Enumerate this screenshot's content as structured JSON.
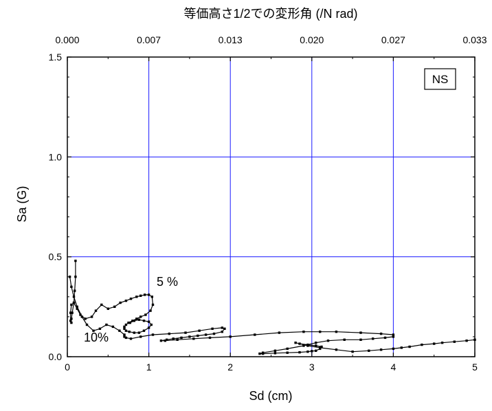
{
  "chart_data": {
    "type": "line",
    "title": "",
    "xlabel": "Sd (cm)",
    "ylabel": "Sa (G)",
    "top_xlabel": "等価高さ1/2での変形角 (/N rad)",
    "xlim": [
      0,
      5
    ],
    "ylim": [
      0,
      1.5
    ],
    "x_ticks": [
      "0",
      "1",
      "2",
      "3",
      "4",
      "5"
    ],
    "y_ticks": [
      "0.0",
      "0.5",
      "1.0",
      "1.5"
    ],
    "top_x_ticks": [
      "0.000",
      "0.007",
      "0.013",
      "0.020",
      "0.027",
      "0.033"
    ],
    "grid": true,
    "grid_color": "#1a1aff",
    "badge": "NS",
    "annotations": [
      {
        "text": "5 %",
        "x": 1.05,
        "y": 0.38
      },
      {
        "text": "10%",
        "x": 0.21,
        "y": 0.095
      }
    ],
    "series": [
      {
        "x": [
          0.1,
          0.1,
          0.09,
          0.08,
          0.06,
          0.05,
          0.05,
          0.04,
          0.04,
          0.05,
          0.08,
          0.12,
          0.16,
          0.22,
          0.3,
          0.35,
          0.42,
          0.5,
          0.58,
          0.65,
          0.72,
          0.78,
          0.85,
          0.9,
          0.95,
          1.0,
          1.04,
          1.05,
          1.02,
          0.96,
          0.9,
          0.85,
          0.8,
          0.75,
          0.72,
          0.7,
          0.7,
          0.72,
          0.76,
          0.82,
          0.88,
          0.94,
          1.0,
          1.03,
          1.0,
          0.94,
          0.88,
          0.82,
          0.77
        ],
        "y": [
          0.48,
          0.4,
          0.33,
          0.27,
          0.22,
          0.19,
          0.17,
          0.18,
          0.22,
          0.26,
          0.27,
          0.24,
          0.21,
          0.19,
          0.2,
          0.23,
          0.26,
          0.24,
          0.25,
          0.27,
          0.28,
          0.29,
          0.3,
          0.305,
          0.31,
          0.31,
          0.3,
          0.26,
          0.23,
          0.21,
          0.2,
          0.19,
          0.18,
          0.17,
          0.16,
          0.15,
          0.14,
          0.13,
          0.125,
          0.12,
          0.12,
          0.13,
          0.145,
          0.16,
          0.175,
          0.18,
          0.185,
          0.18,
          0.17
        ]
      },
      {
        "x": [
          0.03,
          0.05,
          0.08,
          0.12,
          0.18,
          0.24,
          0.32,
          0.4,
          0.48,
          0.56,
          0.64,
          0.7,
          0.7,
          0.72,
          0.78,
          0.9,
          1.05,
          1.25,
          1.45,
          1.62,
          1.78,
          1.9,
          1.93,
          1.9,
          1.8,
          1.7,
          1.6,
          1.5,
          1.4,
          1.3,
          1.22,
          1.15,
          1.2,
          1.35,
          1.55,
          1.75,
          2.0,
          2.3,
          2.6,
          2.9,
          3.1,
          3.3,
          3.6,
          3.85,
          4.0,
          4.0,
          3.9,
          3.75,
          3.6,
          3.4,
          3.2,
          3.05,
          2.9,
          2.7,
          2.55,
          2.4,
          2.36,
          2.4,
          2.55,
          2.7,
          2.85,
          2.95,
          3.0,
          3.05,
          3.1,
          3.12,
          3.05,
          2.95,
          2.85,
          2.8,
          2.95,
          3.1,
          3.3,
          3.5,
          3.7,
          3.85,
          4.0,
          4.1,
          4.2,
          4.35,
          4.5,
          4.6,
          4.75,
          4.9,
          5.0
        ],
        "y": [
          0.4,
          0.35,
          0.3,
          0.25,
          0.2,
          0.16,
          0.13,
          0.14,
          0.16,
          0.15,
          0.13,
          0.11,
          0.1,
          0.095,
          0.09,
          0.1,
          0.11,
          0.115,
          0.12,
          0.13,
          0.14,
          0.145,
          0.14,
          0.125,
          0.115,
          0.11,
          0.105,
          0.1,
          0.095,
          0.09,
          0.085,
          0.08,
          0.08,
          0.085,
          0.09,
          0.095,
          0.1,
          0.11,
          0.12,
          0.125,
          0.125,
          0.125,
          0.12,
          0.115,
          0.11,
          0.1,
          0.095,
          0.09,
          0.085,
          0.085,
          0.08,
          0.07,
          0.055,
          0.04,
          0.03,
          0.02,
          0.015,
          0.015,
          0.018,
          0.02,
          0.022,
          0.025,
          0.028,
          0.03,
          0.04,
          0.05,
          0.055,
          0.06,
          0.065,
          0.07,
          0.055,
          0.045,
          0.035,
          0.025,
          0.03,
          0.035,
          0.04,
          0.045,
          0.05,
          0.06,
          0.065,
          0.07,
          0.075,
          0.08,
          0.085
        ]
      }
    ]
  }
}
